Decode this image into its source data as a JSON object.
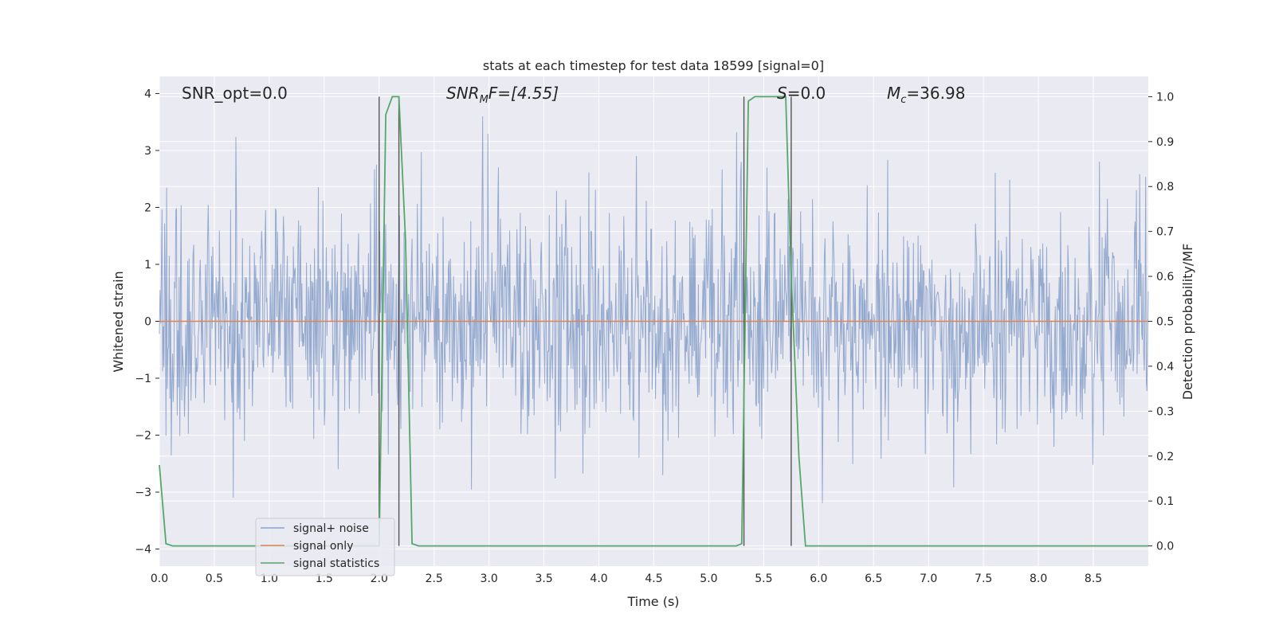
{
  "chart_data": {
    "type": "line",
    "title": "stats at each timestep for test data 18599 [signal=0]",
    "xlabel": "Time (s)",
    "ylabel": "Whitened strain",
    "y2label": "Detection probability/MF",
    "xlim": [
      0.0,
      9.0
    ],
    "ylim": [
      -4.3,
      4.3
    ],
    "y2lim": [
      -0.045,
      1.045
    ],
    "x_ticks": [
      0.0,
      0.5,
      1.0,
      1.5,
      2.0,
      2.5,
      3.0,
      3.5,
      4.0,
      4.5,
      5.0,
      5.5,
      6.0,
      6.5,
      7.0,
      7.5,
      8.0,
      8.5
    ],
    "x_tick_labels": [
      "0.0",
      "0.5",
      "1.0",
      "1.5",
      "2.0",
      "2.5",
      "3.0",
      "3.5",
      "4.0",
      "4.5",
      "5.0",
      "5.5",
      "6.0",
      "6.5",
      "7.0",
      "7.5",
      "8.0",
      "8.5"
    ],
    "y_ticks": [
      4,
      3,
      2,
      1,
      0,
      -1,
      -2,
      -3,
      -4
    ],
    "y_tick_labels": [
      "4",
      "3",
      "2",
      "1",
      "0",
      "−1",
      "−2",
      "−3",
      "−4"
    ],
    "y2_ticks": [
      1.0,
      0.9,
      0.8,
      0.7,
      0.6,
      0.5,
      0.4,
      0.3,
      0.2,
      0.1,
      0.0
    ],
    "y2_tick_labels": [
      "1.0",
      "0.9",
      "0.8",
      "0.7",
      "0.6",
      "0.5",
      "0.4",
      "0.3",
      "0.2",
      "0.1",
      "0.0"
    ],
    "grid": true,
    "legend_position": "lower-left",
    "series": [
      {
        "name": "signal+ noise",
        "color": "#4c72b0",
        "axis": "left",
        "kind": "noise",
        "spread_std": 1.0,
        "display_range": [
          -4.0,
          3.6
        ]
      },
      {
        "name": "signal only",
        "color": "#dd8452",
        "axis": "left",
        "x": [
          0.0,
          9.0
        ],
        "values": [
          0.0,
          0.0
        ]
      },
      {
        "name": "signal statistics",
        "color": "#55a868",
        "axis": "right",
        "x": [
          0.0,
          0.06,
          0.12,
          1.95,
          2.0,
          2.06,
          2.12,
          2.18,
          2.24,
          2.3,
          2.36,
          4.9,
          5.0,
          5.25,
          5.3,
          5.36,
          5.42,
          5.5,
          5.7,
          5.75,
          5.82,
          5.88,
          9.0
        ],
        "values": [
          0.18,
          0.005,
          0.0,
          0.0,
          0.0,
          0.96,
          1.0,
          1.0,
          0.68,
          0.005,
          0.0,
          0.0,
          0.0,
          0.0,
          0.005,
          0.99,
          1.0,
          1.0,
          1.0,
          0.6,
          0.2,
          0.0,
          0.0
        ]
      }
    ],
    "vlines": [
      2.0,
      2.18,
      5.32,
      5.75
    ],
    "vline_color": "#555555",
    "annotations": {
      "snr_opt": "SNR_opt=0.0",
      "snr_mf_main": "SNR",
      "snr_mf_sub": "M",
      "snr_mf_rest": "F=[4.55]",
      "s_main": "S",
      "s_rest": "=0.0",
      "mc_main": "M",
      "mc_sub": "c",
      "mc_rest": "=36.98"
    },
    "colors": {
      "background": "#eaeaf2",
      "grid": "#ffffff"
    }
  }
}
